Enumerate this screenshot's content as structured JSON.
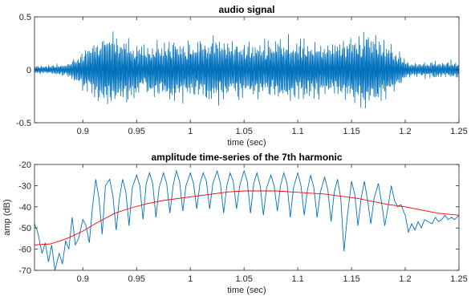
{
  "chart_data": [
    {
      "type": "line",
      "title": "audio signal",
      "xlabel": "time (sec)",
      "ylabel": "",
      "xlim": [
        0.855,
        1.25
      ],
      "ylim": [
        -0.5,
        0.5
      ],
      "xticks": [
        0.9,
        0.95,
        1,
        1.05,
        1.1,
        1.15,
        1.2,
        1.25
      ],
      "xticklabels": [
        "0.9",
        "0.95",
        "1",
        "1.05",
        "1.1",
        "1.15",
        "1.2",
        "1.25"
      ],
      "yticks": [
        -0.5,
        0,
        0.5
      ],
      "yticklabels": [
        "-0.5",
        "0",
        "0.5"
      ],
      "grid": false,
      "series": [
        {
          "color": "#0072BD",
          "envelope_x": [
            0.855,
            0.87,
            0.885,
            0.895,
            0.905,
            0.915,
            0.925,
            0.935,
            0.945,
            0.955,
            0.965,
            0.975,
            0.985,
            0.995,
            1.005,
            1.015,
            1.03,
            1.05,
            1.07,
            1.09,
            1.11,
            1.13,
            1.15,
            1.165,
            1.175,
            1.185,
            1.195,
            1.205,
            1.22,
            1.235,
            1.25
          ],
          "envelope_y": [
            0.05,
            0.05,
            0.08,
            0.15,
            0.28,
            0.38,
            0.44,
            0.4,
            0.34,
            0.26,
            0.3,
            0.34,
            0.36,
            0.32,
            0.3,
            0.38,
            0.34,
            0.3,
            0.32,
            0.36,
            0.34,
            0.3,
            0.38,
            0.44,
            0.36,
            0.3,
            0.18,
            0.08,
            0.09,
            0.1,
            0.1
          ]
        }
      ]
    },
    {
      "type": "line",
      "title": "amplitude time-series of the 7th harmonic",
      "xlabel": "time (sec)",
      "ylabel": "amp (dB)",
      "xlim": [
        0.855,
        1.25
      ],
      "ylim": [
        -70,
        -20
      ],
      "xticks": [
        0.9,
        0.95,
        1,
        1.05,
        1.1,
        1.15,
        1.2,
        1.25
      ],
      "xticklabels": [
        "0.9",
        "0.95",
        "1",
        "1.05",
        "1.1",
        "1.15",
        "1.2",
        "1.25"
      ],
      "yticks": [
        -70,
        -60,
        -50,
        -40,
        -30,
        -20
      ],
      "yticklabels": [
        "-70",
        "-60",
        "-50",
        "-40",
        "-30",
        "-20"
      ],
      "grid": false,
      "series": [
        {
          "color": "#0072BD",
          "x": [
            0.855,
            0.858,
            0.862,
            0.865,
            0.868,
            0.871,
            0.874,
            0.878,
            0.881,
            0.884,
            0.887,
            0.89,
            0.893,
            0.896,
            0.9,
            0.903,
            0.906,
            0.909,
            0.912,
            0.915,
            0.918,
            0.921,
            0.925,
            0.928,
            0.931,
            0.934,
            0.937,
            0.94,
            0.943,
            0.946,
            0.95,
            0.953,
            0.956,
            0.959,
            0.962,
            0.965,
            0.968,
            0.971,
            0.975,
            0.978,
            0.981,
            0.984,
            0.987,
            0.99,
            0.993,
            0.996,
            1.0,
            1.003,
            1.006,
            1.009,
            1.012,
            1.015,
            1.018,
            1.021,
            1.025,
            1.028,
            1.031,
            1.034,
            1.037,
            1.04,
            1.043,
            1.046,
            1.05,
            1.053,
            1.056,
            1.059,
            1.062,
            1.065,
            1.068,
            1.071,
            1.075,
            1.078,
            1.081,
            1.084,
            1.087,
            1.09,
            1.093,
            1.096,
            1.1,
            1.103,
            1.106,
            1.109,
            1.112,
            1.115,
            1.118,
            1.121,
            1.125,
            1.128,
            1.131,
            1.134,
            1.137,
            1.14,
            1.143,
            1.146,
            1.15,
            1.153,
            1.156,
            1.159,
            1.162,
            1.165,
            1.168,
            1.171,
            1.175,
            1.178,
            1.181,
            1.184,
            1.187,
            1.19,
            1.193,
            1.196,
            1.2,
            1.203,
            1.206,
            1.209,
            1.212,
            1.215,
            1.218,
            1.221,
            1.225,
            1.228,
            1.231,
            1.234,
            1.237,
            1.24,
            1.243,
            1.246,
            1.25
          ],
          "y": [
            -48,
            -52,
            -62,
            -57,
            -66,
            -58,
            -70,
            -62,
            -67,
            -56,
            -60,
            -45,
            -58,
            -55,
            -46,
            -49,
            -57,
            -40,
            -27,
            -36,
            -53,
            -30,
            -27,
            -35,
            -51,
            -36,
            -27,
            -33,
            -49,
            -31,
            -25,
            -30,
            -46,
            -29,
            -24,
            -29,
            -45,
            -31,
            -24,
            -29,
            -43,
            -30,
            -23,
            -28,
            -42,
            -30,
            -24,
            -29,
            -41,
            -29,
            -24,
            -28,
            -41,
            -29,
            -23,
            -29,
            -43,
            -30,
            -24,
            -28,
            -41,
            -30,
            -23,
            -28,
            -43,
            -29,
            -24,
            -30,
            -44,
            -31,
            -25,
            -30,
            -42,
            -30,
            -24,
            -29,
            -45,
            -31,
            -24,
            -30,
            -44,
            -32,
            -25,
            -31,
            -45,
            -33,
            -26,
            -32,
            -47,
            -33,
            -27,
            -36,
            -61,
            -45,
            -28,
            -34,
            -49,
            -36,
            -28,
            -37,
            -48,
            -36,
            -29,
            -38,
            -49,
            -40,
            -30,
            -37,
            -40,
            -39,
            -44,
            -52,
            -48,
            -51,
            -47,
            -50,
            -46,
            -47,
            -48,
            -45,
            -47,
            -46,
            -44,
            -46,
            -45,
            -46,
            -44
          ]
        },
        {
          "color": "#FF0000",
          "x": [
            0.855,
            0.87,
            0.885,
            0.9,
            0.915,
            0.93,
            0.945,
            0.96,
            0.975,
            0.99,
            1.005,
            1.02,
            1.035,
            1.05,
            1.065,
            1.08,
            1.095,
            1.11,
            1.125,
            1.14,
            1.155,
            1.17,
            1.185,
            1.2,
            1.215,
            1.23,
            1.25
          ],
          "y": [
            -58,
            -57.5,
            -55,
            -51.5,
            -47,
            -43,
            -40.5,
            -38.5,
            -37,
            -36,
            -35,
            -34,
            -33,
            -32.5,
            -32.5,
            -32.5,
            -33,
            -33.5,
            -34,
            -35,
            -36,
            -37.5,
            -39,
            -40,
            -41.5,
            -43,
            -44
          ]
        }
      ]
    }
  ]
}
